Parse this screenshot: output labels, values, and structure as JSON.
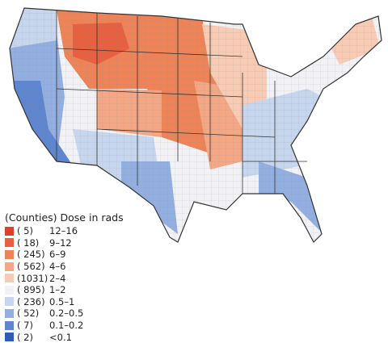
{
  "legend": {
    "title": "(Counties) Dose in rads",
    "items": [
      {
        "count": "(   5)",
        "range": "12–16",
        "color": "#e0402a"
      },
      {
        "count": "(  18)",
        "range": "9–12",
        "color": "#e8603f"
      },
      {
        "count": "( 245)",
        "range": "6–9",
        "color": "#ee8358"
      },
      {
        "count": "( 562)",
        "range": "4–6",
        "color": "#f4a784"
      },
      {
        "count": "(1031)",
        "range": "2–4",
        "color": "#f8cbb5"
      },
      {
        "count": "( 895)",
        "range": "1–2",
        "color": "#f2f2f6"
      },
      {
        "count": "( 236)",
        "range": "0.5–1",
        "color": "#c7d6ef"
      },
      {
        "count": "(  52)",
        "range": "0.2–0.5",
        "color": "#93afe2"
      },
      {
        "count": "(   7)",
        "range": "0.1–0.2",
        "color": "#5e85cf"
      },
      {
        "count": "(   2)",
        "range": "<0.1",
        "color": "#2d5db8"
      }
    ]
  },
  "palette": {
    "high": "#e8603f",
    "mid_high": "#f4a784",
    "light_warm": "#f8cbb5",
    "neutral": "#f2f2f6",
    "light_cool": "#c7d6ef",
    "cool": "#93afe2",
    "deep_cool": "#5e85cf",
    "border": "#333333"
  }
}
